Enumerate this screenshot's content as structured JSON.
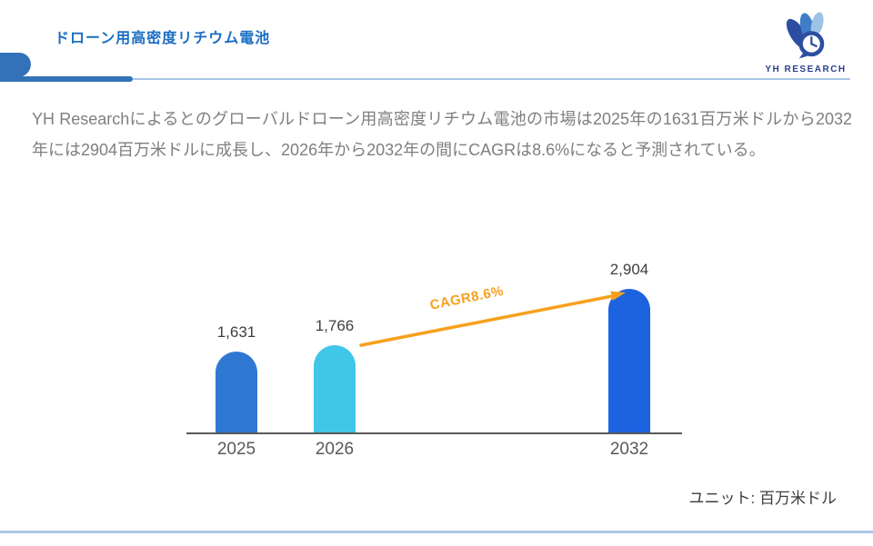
{
  "header": {
    "title": "ドローン用高密度リチウム電池",
    "logo_text": "YH RESEARCH"
  },
  "body": {
    "description": "YH Researchによるとのグローバルドローン用高密度リチウム電池の市場は2025年の1631百万米ドルから2032年には2904百万米ドルに成長し、2026年から2032年の間にCAGRは8.6%になると予測されている。",
    "unit_note": "ユニット: 百万米ドル"
  },
  "chart_data": {
    "type": "bar",
    "categories": [
      "2025",
      "2026",
      "2032"
    ],
    "values": [
      1631,
      1766,
      2904
    ],
    "value_labels": [
      "1,631",
      "1,766",
      "2,904"
    ],
    "annotation": "CAGR8.6%",
    "unit": "百万米ドル",
    "ylim": [
      0,
      3000
    ],
    "grid": false,
    "legend": "none",
    "bar_colors": [
      "#2e78d2",
      "#40c6e6",
      "#1d63e0"
    ],
    "annotation_color": "#f7a01d",
    "axis_color": "#595959"
  },
  "colors": {
    "title_blue": "#1b6ec2",
    "header_accent_blue": "#3372b9",
    "light_line_blue": "#a9c6e8",
    "body_text_gray": "#7f7f7f",
    "logo_navy": "#2b3f8c"
  }
}
